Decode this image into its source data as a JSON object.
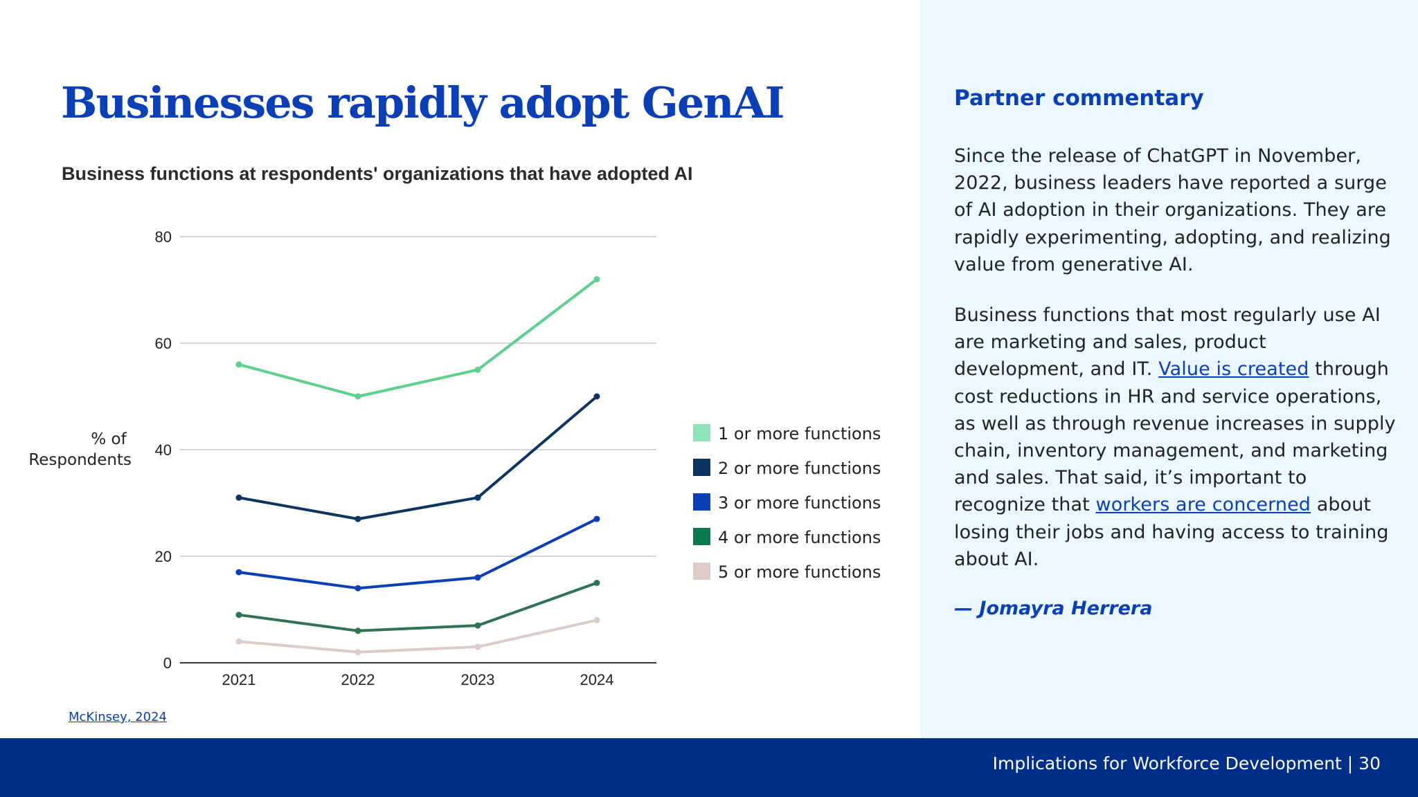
{
  "slide": {
    "title": "Businesses rapidly adopt GenAI",
    "subtitle": "Business functions at respondents' organizations that have adopted AI",
    "source_link": "McKinsey, 2024",
    "footer": "Implications for Workforce Development | 30"
  },
  "commentary": {
    "heading": "Partner commentary",
    "para1": "Since the release of ChatGPT in November, 2022, business leaders have reported a surge of AI adoption in their organizations. They are rapidly experimenting, adopting, and realizing value from generative AI.",
    "para2_a": "Business functions that most regularly use AI are marketing and sales, product development, and IT. ",
    "para2_link1": "Value is created",
    "para2_b": " through cost reductions in HR and service operations, as well as through revenue increases in supply chain, inventory management, and marketing and sales. That said, it’s important to recognize that ",
    "para2_link2": "workers are concerned",
    "para2_c": " about losing their jobs and having access to training about AI.",
    "signature": "— Jomayra Herrera"
  },
  "colors": {
    "title_blue": "#0b3fb8",
    "panel_bg": "#eaf7fe",
    "footer_bg": "#012e87"
  },
  "chart_data": {
    "type": "line",
    "title": "",
    "ylabel": "% of Respondents",
    "xlabel": "",
    "categories": [
      "2021",
      "2022",
      "2023",
      "2024"
    ],
    "ylim": [
      0,
      80
    ],
    "yticks": [
      0,
      20,
      40,
      60,
      80
    ],
    "grid": true,
    "legend_position": "right",
    "series": [
      {
        "name": "1 or more functions",
        "color": "#5ed08e",
        "legend_color": "#8ee6b8",
        "values": [
          56,
          50,
          55,
          72
        ]
      },
      {
        "name": "2 or more functions",
        "color": "#0d3561",
        "legend_color": "#0d3561",
        "values": [
          31,
          27,
          31,
          50
        ]
      },
      {
        "name": "3 or more functions",
        "color": "#0b3fb8",
        "legend_color": "#0b3fb8",
        "values": [
          17,
          14,
          16,
          27
        ]
      },
      {
        "name": "4 or more functions",
        "color": "#2f7254",
        "legend_color": "#0a7a4e",
        "values": [
          9,
          6,
          7,
          15
        ]
      },
      {
        "name": "5 or more functions",
        "color": "#dccbc7",
        "legend_color": "#dccbc7",
        "values": [
          4,
          2,
          3,
          8
        ]
      }
    ]
  }
}
